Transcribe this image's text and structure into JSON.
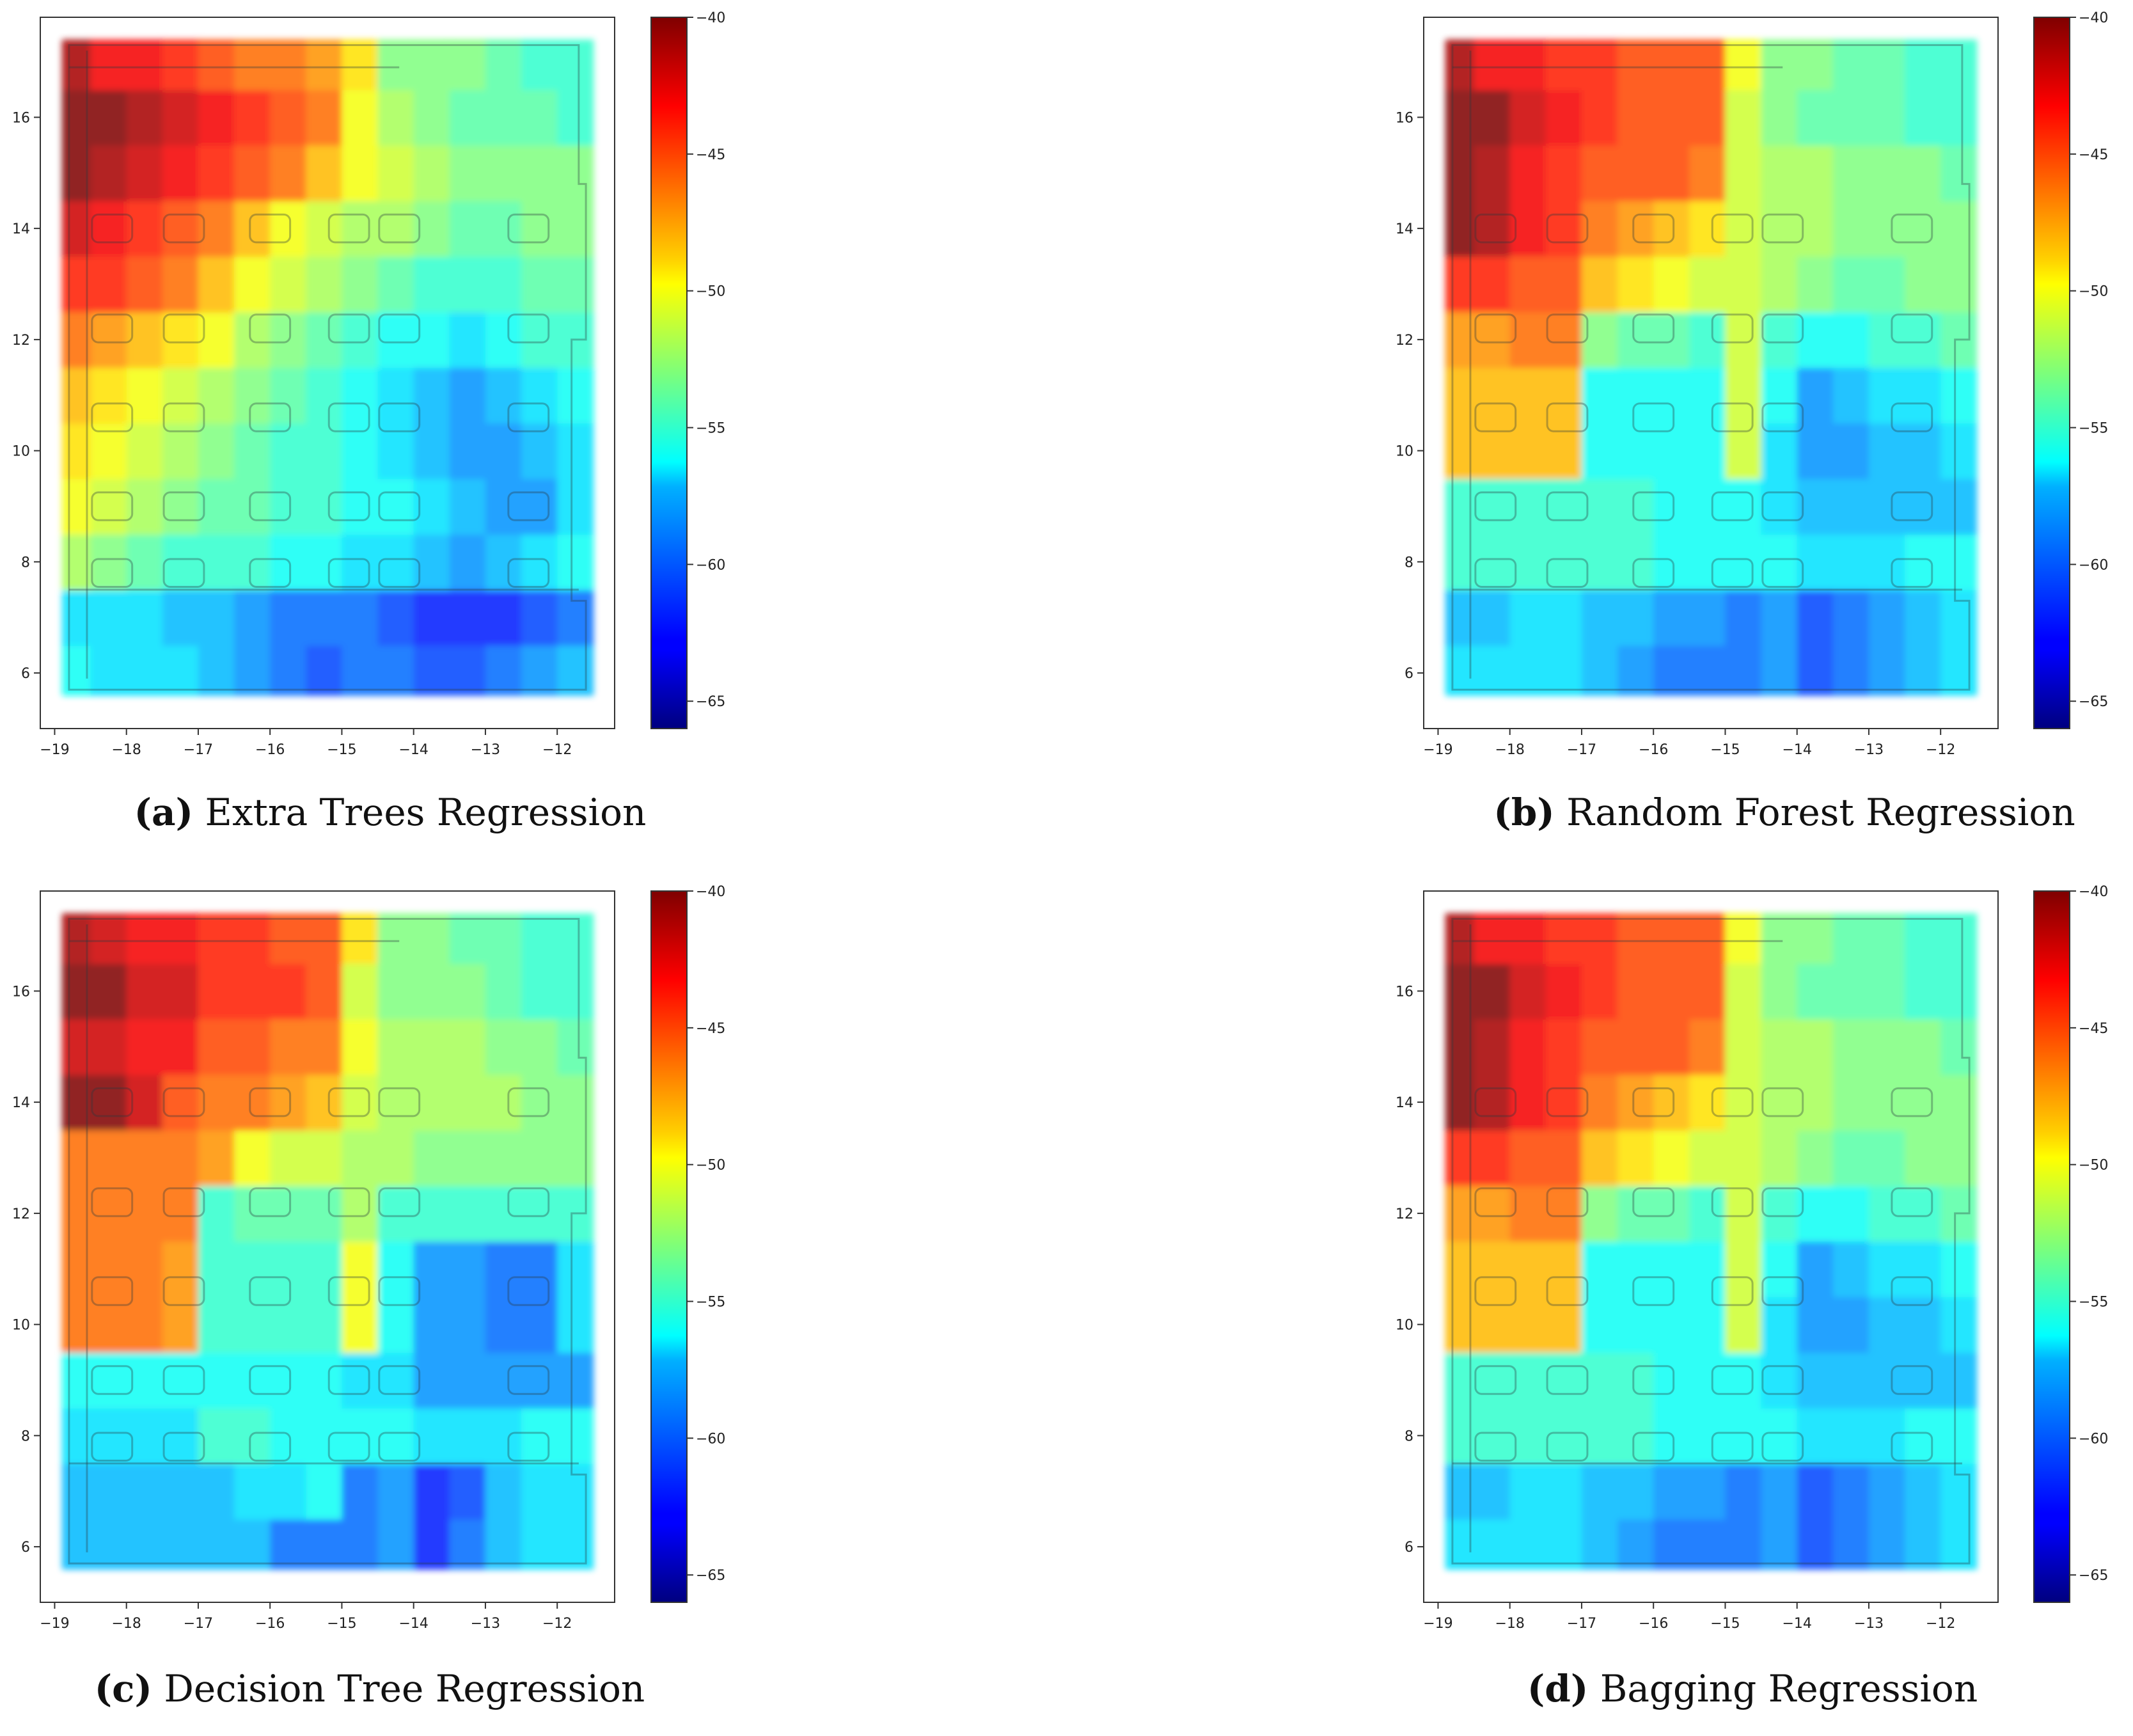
{
  "chart_data": [
    {
      "type": "heatmap",
      "panel_label": "(a)",
      "title": "Extra Trees Regression",
      "xticks": [
        -19,
        -18,
        -17,
        -16,
        -15,
        -14,
        -13,
        -12
      ],
      "yticks": [
        6,
        8,
        10,
        12,
        14,
        16
      ],
      "xlim": [
        -19.2,
        -11.2
      ],
      "ylim": [
        5.0,
        17.8
      ],
      "colorbar": {
        "ticks": [
          -40,
          -45,
          -50,
          -55,
          -60,
          -65
        ],
        "range": [
          -66,
          -40
        ],
        "colormap": "jet"
      },
      "x_edges": [
        -18.9,
        -18.5,
        -18,
        -17.5,
        -17,
        -16.5,
        -16,
        -15.5,
        -15,
        -14.5,
        -14,
        -13.5,
        -13,
        -12.5,
        -12,
        -11.5
      ],
      "y_edges": [
        5.6,
        6.5,
        7.5,
        8.5,
        9.5,
        10.5,
        11.5,
        12.5,
        13.5,
        14.5,
        15.5,
        16.5,
        17.4
      ],
      "values": [
        [
          -56,
          -57,
          -57,
          -57,
          -58,
          -59,
          -60,
          -61,
          -60,
          -60,
          -61,
          -61,
          -60,
          -59,
          -58
        ],
        [
          -57,
          -57,
          -57,
          -58,
          -58,
          -59,
          -60,
          -60,
          -60,
          -61,
          -62,
          -62,
          -62,
          -61,
          -60
        ],
        [
          -52,
          -53,
          -54,
          -55,
          -55,
          -55,
          -56,
          -56,
          -57,
          -57,
          -58,
          -59,
          -58,
          -57,
          -56
        ],
        [
          -50,
          -51,
          -52,
          -53,
          -54,
          -54,
          -55,
          -55,
          -56,
          -56,
          -57,
          -58,
          -59,
          -59,
          -57
        ],
        [
          -49,
          -50,
          -51,
          -52,
          -53,
          -54,
          -55,
          -55,
          -56,
          -57,
          -58,
          -59,
          -59,
          -58,
          -57
        ],
        [
          -48,
          -49,
          -50,
          -51,
          -52,
          -53,
          -54,
          -55,
          -56,
          -57,
          -58,
          -59,
          -58,
          -57,
          -56
        ],
        [
          -46,
          -47,
          -48,
          -49,
          -50,
          -52,
          -53,
          -54,
          -55,
          -56,
          -56,
          -57,
          -56,
          -55,
          -55
        ],
        [
          -44,
          -44,
          -45,
          -46,
          -48,
          -50,
          -51,
          -52,
          -53,
          -54,
          -55,
          -55,
          -55,
          -54,
          -54
        ],
        [
          -42,
          -43,
          -44,
          -45,
          -46,
          -48,
          -50,
          -51,
          -52,
          -52,
          -53,
          -54,
          -54,
          -53,
          -53
        ],
        [
          -40,
          -41,
          -42,
          -43,
          -44,
          -45,
          -46,
          -48,
          -50,
          -51,
          -52,
          -53,
          -53,
          -53,
          -53
        ],
        [
          -39,
          -40,
          -41,
          -42,
          -43,
          -44,
          -45,
          -46,
          -50,
          -52,
          -53,
          -54,
          -54,
          -54,
          -55
        ],
        [
          -41,
          -43,
          -43,
          -44,
          -45,
          -46,
          -46,
          -47,
          -49,
          -53,
          -53,
          -53,
          -54,
          -55,
          -55
        ]
      ]
    },
    {
      "type": "heatmap",
      "panel_label": "(b)",
      "title": "Random Forest Regression",
      "xticks": [
        -19,
        -18,
        -17,
        -16,
        -15,
        -14,
        -13,
        -12
      ],
      "yticks": [
        6,
        8,
        10,
        12,
        14,
        16
      ],
      "xlim": [
        -19.2,
        -11.2
      ],
      "ylim": [
        5.0,
        17.8
      ],
      "colorbar": {
        "ticks": [
          -40,
          -45,
          -50,
          -55,
          -60,
          -65
        ],
        "range": [
          -66,
          -40
        ],
        "colormap": "jet"
      },
      "x_edges": [
        -18.9,
        -18.5,
        -18,
        -17.5,
        -17,
        -16.5,
        -16,
        -15.5,
        -15,
        -14.5,
        -14,
        -13.5,
        -13,
        -12.5,
        -12,
        -11.5
      ],
      "y_edges": [
        5.6,
        6.5,
        7.5,
        8.5,
        9.5,
        10.5,
        11.5,
        12.5,
        13.5,
        14.5,
        15.5,
        16.5,
        17.4
      ],
      "values": [
        [
          -57,
          -57,
          -57,
          -57,
          -58,
          -59,
          -60,
          -60,
          -60,
          -59,
          -61,
          -60,
          -59,
          -58,
          -57
        ],
        [
          -58,
          -58,
          -57,
          -57,
          -58,
          -58,
          -59,
          -59,
          -60,
          -59,
          -61,
          -60,
          -59,
          -58,
          -57
        ],
        [
          -55,
          -55,
          -55,
          -55,
          -55,
          -55,
          -56,
          -56,
          -56,
          -56,
          -57,
          -57,
          -57,
          -56,
          -56
        ],
        [
          -55,
          -55,
          -55,
          -55,
          -55,
          -55,
          -56,
          -56,
          -56,
          -57,
          -58,
          -58,
          -58,
          -58,
          -58
        ],
        [
          -48,
          -48,
          -48,
          -48,
          -56,
          -56,
          -56,
          -56,
          -51,
          -57,
          -59,
          -59,
          -58,
          -58,
          -57
        ],
        [
          -48,
          -48,
          -48,
          -48,
          -56,
          -56,
          -56,
          -56,
          -51,
          -56,
          -59,
          -58,
          -57,
          -57,
          -56
        ],
        [
          -47,
          -47,
          -46,
          -46,
          -53,
          -54,
          -54,
          -55,
          -51,
          -55,
          -56,
          -56,
          -55,
          -55,
          -54
        ],
        [
          -44,
          -44,
          -45,
          -45,
          -48,
          -49,
          -50,
          -51,
          -51,
          -52,
          -53,
          -54,
          -54,
          -53,
          -53
        ],
        [
          -40,
          -41,
          -43,
          -44,
          -46,
          -47,
          -48,
          -49,
          -51,
          -52,
          -52,
          -53,
          -53,
          -53,
          -53
        ],
        [
          -40,
          -41,
          -43,
          -44,
          -45,
          -45,
          -45,
          -46,
          -51,
          -52,
          -52,
          -53,
          -53,
          -53,
          -54
        ],
        [
          -39,
          -40,
          -42,
          -43,
          -44,
          -45,
          -45,
          -45,
          -51,
          -53,
          -54,
          -54,
          -54,
          -55,
          -55
        ],
        [
          -41,
          -43,
          -43,
          -44,
          -44,
          -45,
          -45,
          -45,
          -50,
          -53,
          -53,
          -54,
          -54,
          -55,
          -55
        ]
      ]
    },
    {
      "type": "heatmap",
      "panel_label": "(c)",
      "title": "Decision Tree Regression",
      "xticks": [
        -19,
        -18,
        -17,
        -16,
        -15,
        -14,
        -13,
        -12
      ],
      "yticks": [
        6,
        8,
        10,
        12,
        14,
        16
      ],
      "xlim": [
        -19.2,
        -11.2
      ],
      "ylim": [
        5.0,
        17.8
      ],
      "colorbar": {
        "ticks": [
          -40,
          -45,
          -50,
          -55,
          -60,
          -65
        ],
        "range": [
          -66,
          -40
        ],
        "colormap": "jet"
      },
      "x_edges": [
        -18.9,
        -18.5,
        -18,
        -17.5,
        -17,
        -16.5,
        -16,
        -15.5,
        -15,
        -14.5,
        -14,
        -13.5,
        -13,
        -12.5,
        -12,
        -11.5
      ],
      "y_edges": [
        5.6,
        6.5,
        7.5,
        8.5,
        9.5,
        10.5,
        11.5,
        12.5,
        13.5,
        14.5,
        15.5,
        16.5,
        17.4
      ],
      "values": [
        [
          -58,
          -58,
          -58,
          -58,
          -58,
          -58,
          -60,
          -60,
          -60,
          -59,
          -62,
          -60,
          -58,
          -57,
          -57
        ],
        [
          -58,
          -58,
          -58,
          -58,
          -58,
          -57,
          -57,
          -56,
          -60,
          -59,
          -62,
          -61,
          -58,
          -57,
          -57
        ],
        [
          -57,
          -57,
          -57,
          -57,
          -55,
          -55,
          -56,
          -56,
          -56,
          -56,
          -57,
          -57,
          -57,
          -56,
          -56
        ],
        [
          -56,
          -56,
          -56,
          -56,
          -56,
          -56,
          -56,
          -56,
          -57,
          -57,
          -59,
          -59,
          -59,
          -59,
          -59
        ],
        [
          -46,
          -46,
          -46,
          -47,
          -55,
          -55,
          -55,
          -55,
          -50,
          -56,
          -59,
          -59,
          -60,
          -60,
          -57
        ],
        [
          -46,
          -46,
          -46,
          -47,
          -55,
          -55,
          -55,
          -55,
          -50,
          -56,
          -59,
          -59,
          -60,
          -60,
          -57
        ],
        [
          -46,
          -46,
          -46,
          -46,
          -55,
          -54,
          -54,
          -54,
          -52,
          -55,
          -55,
          -55,
          -55,
          -55,
          -55
        ],
        [
          -46,
          -46,
          -46,
          -46,
          -47,
          -50,
          -51,
          -51,
          -52,
          -52,
          -53,
          -53,
          -53,
          -53,
          -53
        ],
        [
          -40,
          -40,
          -42,
          -45,
          -46,
          -46,
          -47,
          -48,
          -51,
          -52,
          -52,
          -52,
          -52,
          -53,
          -53
        ],
        [
          -42,
          -42,
          -43,
          -43,
          -45,
          -45,
          -46,
          -46,
          -50,
          -52,
          -52,
          -52,
          -53,
          -53,
          -54
        ],
        [
          -40,
          -40,
          -42,
          -42,
          -44,
          -44,
          -44,
          -45,
          -51,
          -53,
          -53,
          -53,
          -54,
          -55,
          -55
        ],
        [
          -41,
          -42,
          -43,
          -43,
          -44,
          -44,
          -45,
          -45,
          -49,
          -53,
          -53,
          -54,
          -54,
          -55,
          -55
        ]
      ]
    },
    {
      "type": "heatmap",
      "panel_label": "(d)",
      "title": "Bagging Regression",
      "xticks": [
        -19,
        -18,
        -17,
        -16,
        -15,
        -14,
        -13,
        -12
      ],
      "yticks": [
        6,
        8,
        10,
        12,
        14,
        16
      ],
      "xlim": [
        -19.2,
        -11.2
      ],
      "ylim": [
        5.0,
        17.8
      ],
      "colorbar": {
        "ticks": [
          -40,
          -45,
          -50,
          -55,
          -60,
          -65
        ],
        "range": [
          -66,
          -40
        ],
        "colormap": "jet"
      },
      "x_edges": [
        -18.9,
        -18.5,
        -18,
        -17.5,
        -17,
        -16.5,
        -16,
        -15.5,
        -15,
        -14.5,
        -14,
        -13.5,
        -13,
        -12.5,
        -12,
        -11.5
      ],
      "y_edges": [
        5.6,
        6.5,
        7.5,
        8.5,
        9.5,
        10.5,
        11.5,
        12.5,
        13.5,
        14.5,
        15.5,
        16.5,
        17.4
      ],
      "values": [
        [
          -57,
          -57,
          -57,
          -57,
          -58,
          -59,
          -60,
          -60,
          -60,
          -59,
          -61,
          -60,
          -59,
          -58,
          -57
        ],
        [
          -58,
          -58,
          -57,
          -57,
          -58,
          -58,
          -59,
          -59,
          -60,
          -59,
          -61,
          -60,
          -59,
          -58,
          -57
        ],
        [
          -55,
          -55,
          -55,
          -55,
          -55,
          -55,
          -56,
          -56,
          -56,
          -56,
          -57,
          -57,
          -57,
          -56,
          -56
        ],
        [
          -55,
          -55,
          -55,
          -55,
          -55,
          -55,
          -56,
          -56,
          -56,
          -57,
          -58,
          -58,
          -58,
          -58,
          -58
        ],
        [
          -48,
          -48,
          -48,
          -48,
          -56,
          -56,
          -56,
          -56,
          -51,
          -57,
          -59,
          -59,
          -58,
          -58,
          -57
        ],
        [
          -48,
          -48,
          -48,
          -48,
          -56,
          -56,
          -56,
          -56,
          -51,
          -56,
          -59,
          -58,
          -57,
          -57,
          -56
        ],
        [
          -47,
          -47,
          -46,
          -46,
          -53,
          -54,
          -54,
          -55,
          -51,
          -55,
          -56,
          -56,
          -55,
          -55,
          -54
        ],
        [
          -44,
          -44,
          -45,
          -45,
          -48,
          -49,
          -50,
          -51,
          -51,
          -52,
          -53,
          -54,
          -54,
          -53,
          -53
        ],
        [
          -40,
          -41,
          -43,
          -44,
          -46,
          -47,
          -48,
          -49,
          -51,
          -52,
          -52,
          -53,
          -53,
          -53,
          -53
        ],
        [
          -40,
          -41,
          -43,
          -44,
          -45,
          -45,
          -45,
          -46,
          -51,
          -52,
          -52,
          -53,
          -53,
          -53,
          -54
        ],
        [
          -39,
          -40,
          -42,
          -43,
          -44,
          -45,
          -45,
          -45,
          -51,
          -53,
          -54,
          -54,
          -54,
          -55,
          -55
        ],
        [
          -41,
          -43,
          -43,
          -44,
          -44,
          -45,
          -45,
          -45,
          -50,
          -53,
          -53,
          -54,
          -54,
          -55,
          -55
        ]
      ]
    }
  ]
}
